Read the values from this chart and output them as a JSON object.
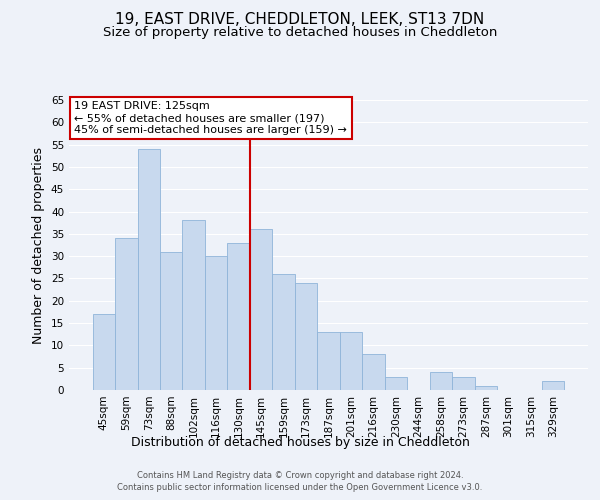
{
  "title": "19, EAST DRIVE, CHEDDLETON, LEEK, ST13 7DN",
  "subtitle": "Size of property relative to detached houses in Cheddleton",
  "xlabel": "Distribution of detached houses by size in Cheddleton",
  "ylabel": "Number of detached properties",
  "categories": [
    "45sqm",
    "59sqm",
    "73sqm",
    "88sqm",
    "102sqm",
    "116sqm",
    "130sqm",
    "145sqm",
    "159sqm",
    "173sqm",
    "187sqm",
    "201sqm",
    "216sqm",
    "230sqm",
    "244sqm",
    "258sqm",
    "273sqm",
    "287sqm",
    "301sqm",
    "315sqm",
    "329sqm"
  ],
  "values": [
    17,
    34,
    54,
    31,
    38,
    30,
    33,
    36,
    26,
    24,
    13,
    13,
    8,
    3,
    0,
    4,
    3,
    1,
    0,
    0,
    2
  ],
  "bar_color": "#c8d9ee",
  "bar_edge_color": "#8fb4d9",
  "ylim": [
    0,
    65
  ],
  "yticks": [
    0,
    5,
    10,
    15,
    20,
    25,
    30,
    35,
    40,
    45,
    50,
    55,
    60,
    65
  ],
  "vline_x_index": 6,
  "vline_color": "#cc0000",
  "annotation_title": "19 EAST DRIVE: 125sqm",
  "annotation_line1": "← 55% of detached houses are smaller (197)",
  "annotation_line2": "45% of semi-detached houses are larger (159) →",
  "annotation_box_color": "#ffffff",
  "annotation_box_edge": "#cc0000",
  "title_fontsize": 11,
  "subtitle_fontsize": 9.5,
  "axis_label_fontsize": 9,
  "tick_fontsize": 7.5,
  "annotation_fontsize": 8,
  "footer_line1": "Contains HM Land Registry data © Crown copyright and database right 2024.",
  "footer_line2": "Contains public sector information licensed under the Open Government Licence v3.0.",
  "background_color": "#eef2f9",
  "plot_background_color": "#eef2f9",
  "grid_color": "#ffffff"
}
